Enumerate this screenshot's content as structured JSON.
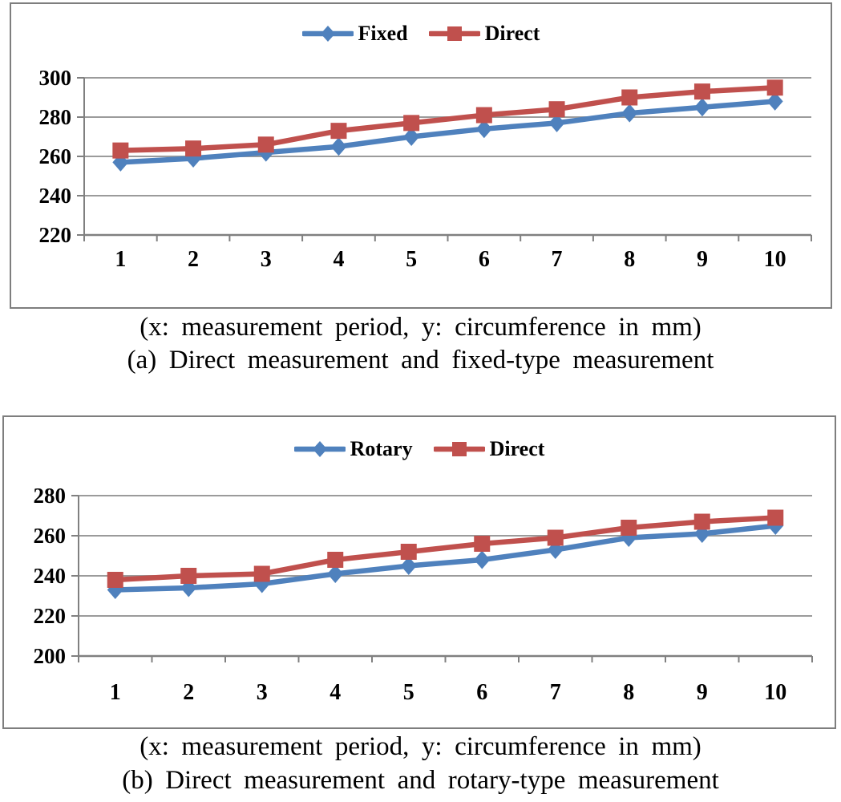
{
  "figure": {
    "background": "#ffffff",
    "text_color": "#000000",
    "gridline_color": "#9b9b9b",
    "axis_color": "#808080",
    "panel_border_color": "#7e7e7e"
  },
  "chart_data": [
    {
      "type": "line",
      "panel": "a",
      "x": [
        1,
        2,
        3,
        4,
        5,
        6,
        7,
        8,
        9,
        10
      ],
      "ylim": [
        220,
        300
      ],
      "yticks": [
        220,
        240,
        260,
        280,
        300
      ],
      "grid": true,
      "legend_position": "top-center",
      "series": [
        {
          "name": "Fixed",
          "color": "#4F81BD",
          "marker": "diamond",
          "values": [
            257,
            259,
            262,
            265,
            270,
            274,
            277,
            282,
            285,
            288
          ]
        },
        {
          "name": "Direct",
          "color": "#C0504D",
          "marker": "square",
          "values": [
            263,
            264,
            266,
            273,
            277,
            281,
            284,
            290,
            293,
            295
          ]
        }
      ],
      "caption": [
        "(x: measurement period, y: circumference in mm)",
        "(a) Direct measurement and fixed-type measurement"
      ]
    },
    {
      "type": "line",
      "panel": "b",
      "x": [
        1,
        2,
        3,
        4,
        5,
        6,
        7,
        8,
        9,
        10
      ],
      "ylim": [
        200,
        280
      ],
      "yticks": [
        200,
        220,
        240,
        260,
        280
      ],
      "grid": true,
      "legend_position": "top-center",
      "series": [
        {
          "name": "Rotary",
          "color": "#4F81BD",
          "marker": "diamond",
          "values": [
            233,
            234,
            236,
            241,
            245,
            248,
            253,
            259,
            261,
            265
          ]
        },
        {
          "name": "Direct",
          "color": "#C0504D",
          "marker": "square",
          "values": [
            238,
            240,
            241,
            248,
            252,
            256,
            259,
            264,
            267,
            269
          ]
        }
      ],
      "caption": [
        "(x: measurement period, y: circumference in mm)",
        "(b) Direct measurement and rotary-type measurement"
      ]
    }
  ]
}
